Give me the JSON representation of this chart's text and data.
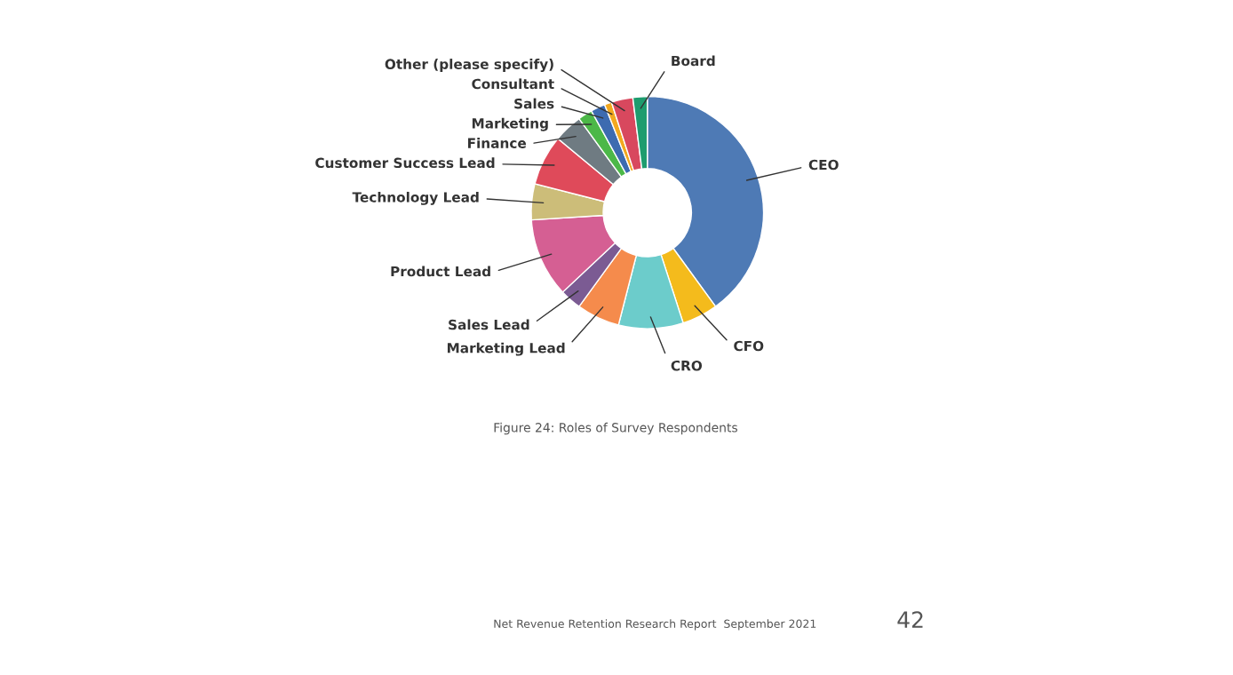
{
  "chart_data": {
    "type": "donut",
    "categories": [
      "CEO",
      "CFO",
      "CRO",
      "Marketing Lead",
      "Sales Lead",
      "Product Lead",
      "Technology Lead",
      "Customer Success Lead",
      "Finance",
      "Marketing",
      "Sales",
      "Consultant",
      "Other (please specify)",
      "Board"
    ],
    "values": [
      40,
      5,
      9,
      6,
      3,
      11,
      5,
      7,
      4,
      2,
      2,
      1,
      3,
      2
    ],
    "colors": [
      "#4e7ab5",
      "#f4bb1c",
      "#6ccccb",
      "#f58b4c",
      "#7b5b93",
      "#d55f93",
      "#ccbd79",
      "#df4a5a",
      "#6f7b82",
      "#4cb848",
      "#3d6bb0",
      "#f2a81f",
      "#d8485e",
      "#1e9c6e"
    ],
    "annotations": [
      "Figure 24: Roles of Survey Respondents",
      "Net Revenue Retention Research Report  September 2021",
      "42"
    ]
  }
}
